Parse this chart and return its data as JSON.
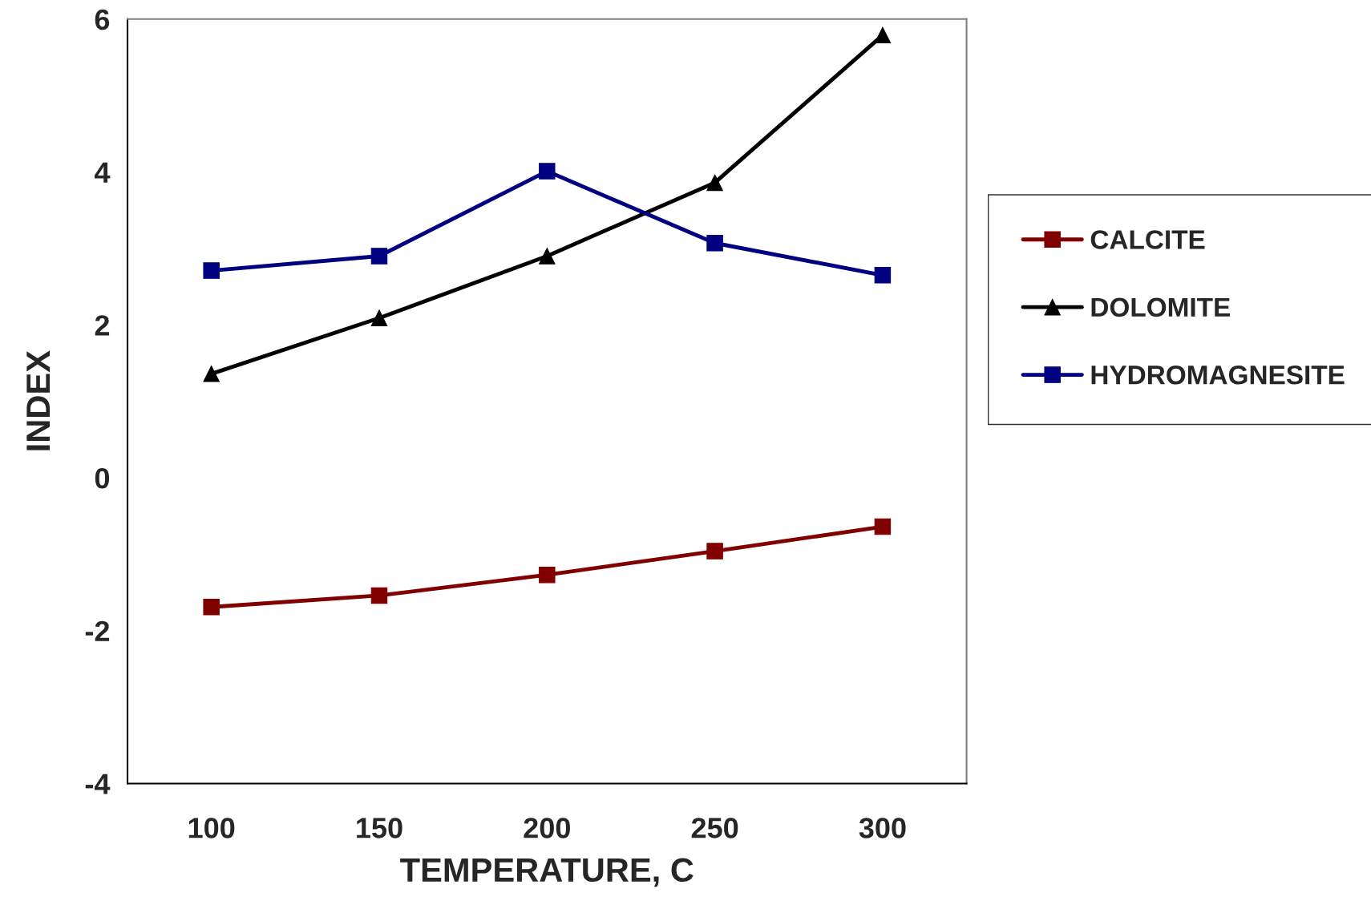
{
  "chart_data": {
    "type": "line",
    "xlabel": "TEMPERATURE, C",
    "ylabel": "INDEX",
    "categories": [
      "100",
      "150",
      "200",
      "250",
      "300"
    ],
    "series": [
      {
        "name": "CALCITE",
        "color": "#800000",
        "marker": "square",
        "values": [
          -1.69,
          -1.54,
          -1.27,
          -0.96,
          -0.64
        ]
      },
      {
        "name": "DOLOMITE",
        "color": "#000000",
        "marker": "triangle",
        "values": [
          1.36,
          2.09,
          2.9,
          3.86,
          5.79
        ]
      },
      {
        "name": "HYDROMAGNESITE",
        "color": "#000080",
        "marker": "square",
        "values": [
          2.71,
          2.9,
          4.01,
          3.07,
          2.65
        ]
      }
    ],
    "ylim": [
      -4,
      6
    ],
    "yticks": [
      -4,
      -2,
      0,
      2,
      4,
      6
    ],
    "grid": false,
    "legend": "right",
    "line_style": "solid"
  }
}
